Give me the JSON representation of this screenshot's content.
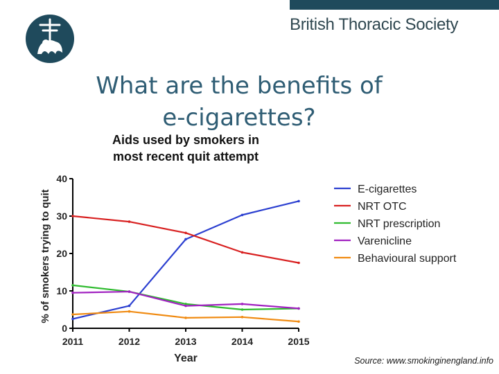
{
  "header": {
    "brand_name": "British Thoracic Society",
    "colors": {
      "bar": "#1f4a5c",
      "logo": "#1f4a5c"
    },
    "logo_icon": "bts-crest-icon"
  },
  "slide": {
    "title_line1": "What are the benefits of",
    "title_line2": "e-cigarettes?"
  },
  "source": "Source: www.smokinginengland.info",
  "chart_data": {
    "type": "line",
    "title_lines": [
      "Aids used by smokers in",
      "most recent quit attempt"
    ],
    "xlabel": "Year",
    "ylabel": "% of smokers trying to quit",
    "x": [
      2011,
      2012,
      2013,
      2014,
      2015
    ],
    "xlim": [
      2011,
      2015
    ],
    "ylim": [
      0,
      40
    ],
    "yticks": [
      0,
      10,
      20,
      30,
      40
    ],
    "grid": false,
    "legend_position": "right",
    "series": [
      {
        "name": "E-cigarettes",
        "color": "#2b3fd0",
        "values": [
          2.5,
          6,
          23.8,
          30.3,
          34
        ]
      },
      {
        "name": "NRT OTC",
        "color": "#d82020",
        "values": [
          30,
          28.5,
          25.5,
          20.3,
          17.5
        ]
      },
      {
        "name": "NRT prescription",
        "color": "#2fbb2f",
        "values": [
          11.5,
          9.8,
          6.5,
          5,
          5.3
        ]
      },
      {
        "name": "Varenicline",
        "color": "#a020c0",
        "values": [
          9.5,
          9.8,
          6,
          6.5,
          5.3
        ]
      },
      {
        "name": "Behavioural support",
        "color": "#f08a10",
        "values": [
          3.7,
          4.5,
          2.8,
          3,
          1.8
        ]
      }
    ]
  }
}
